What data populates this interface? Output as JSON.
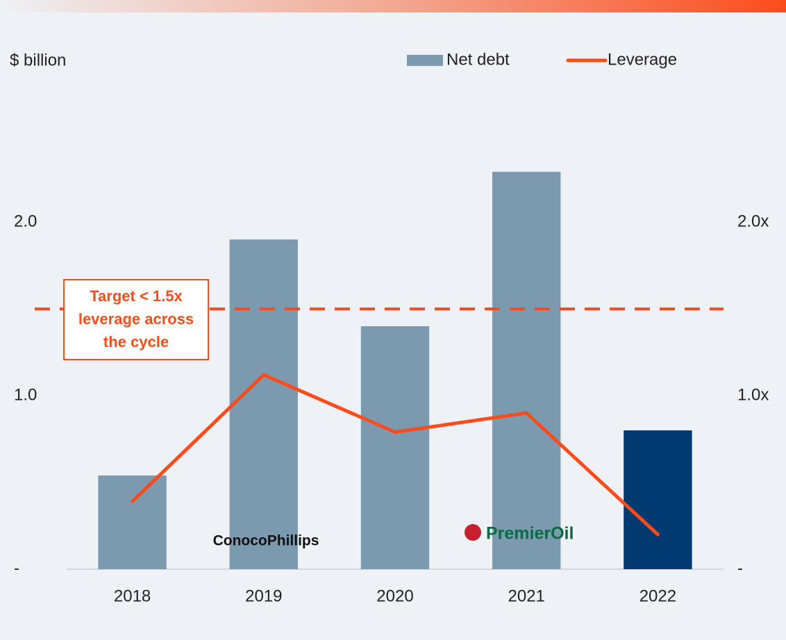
{
  "chart_data": {
    "type": "bar_line",
    "y_axis_label": "$ billion",
    "categories": [
      "2018",
      "2019",
      "2020",
      "2021",
      "2022"
    ],
    "series": [
      {
        "name": "Net debt",
        "type": "bar",
        "color": "#7b9ab0",
        "colors": [
          "#7b9ab0",
          "#7b9ab0",
          "#7b9ab0",
          "#7b9ab0",
          "#003a70"
        ],
        "values": [
          0.54,
          1.9,
          1.4,
          2.29,
          0.8
        ]
      },
      {
        "name": "Leverage",
        "type": "line",
        "axis": "y2",
        "color": "#fc4c1c",
        "values": [
          0.39,
          1.12,
          0.79,
          0.9,
          0.2
        ]
      }
    ],
    "ylim": [
      0,
      2.5
    ],
    "yticks": [
      {
        "value": 0,
        "label": "-"
      },
      {
        "value": 1,
        "label": "1.0"
      },
      {
        "value": 2,
        "label": "2.0"
      }
    ],
    "y2lim": [
      0,
      2.5
    ],
    "y2ticks": [
      {
        "value": 0,
        "label": "-"
      },
      {
        "value": 1,
        "label": "1.0x"
      },
      {
        "value": 2,
        "label": "2.0x"
      }
    ],
    "target": {
      "value": 1.5,
      "axis": "y2",
      "color": "#fc4c1c",
      "annotation": [
        "Target < 1.5x",
        "leverage across",
        "the cycle"
      ]
    },
    "logos": [
      "ConocoPhillips",
      "PremierOil"
    ],
    "legend": "top-right"
  }
}
